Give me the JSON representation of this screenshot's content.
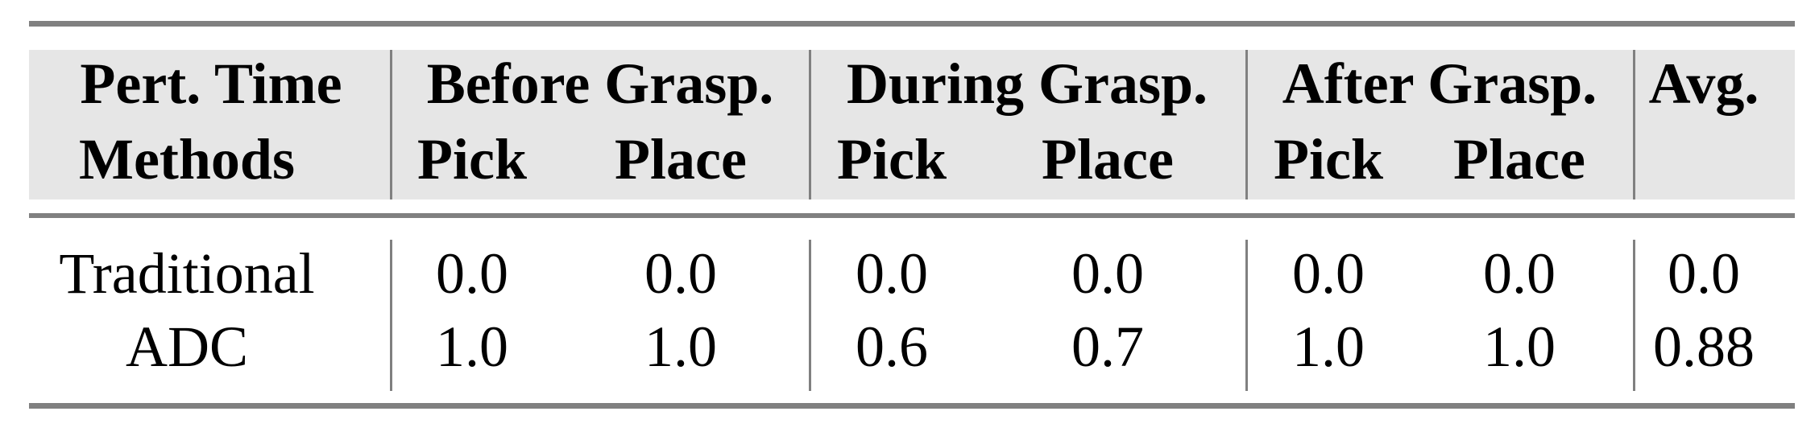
{
  "header": {
    "row1": {
      "label": "Pert. Time",
      "groups": [
        "Before Grasp.",
        "During Grasp.",
        "After Grasp.",
        "Avg."
      ]
    },
    "row2": {
      "label": "Methods",
      "subcols": [
        "Pick",
        "Place",
        "Pick",
        "Place",
        "Pick",
        "Place"
      ]
    }
  },
  "rows": [
    {
      "method": "Traditional",
      "values": [
        "0.0",
        "0.0",
        "0.0",
        "0.0",
        "0.0",
        "0.0"
      ],
      "avg": "0.0"
    },
    {
      "method": "ADC",
      "values": [
        "1.0",
        "1.0",
        "0.6",
        "0.7",
        "1.0",
        "1.0"
      ],
      "avg": "0.88"
    }
  ]
}
